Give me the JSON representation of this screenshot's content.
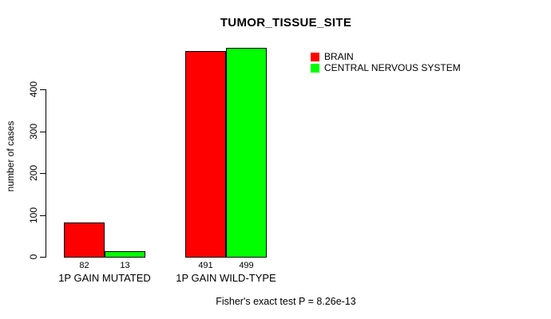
{
  "chart_data": {
    "type": "bar",
    "title": "TUMOR_TISSUE_SITE",
    "categories": [
      "1P GAIN MUTATED",
      "1P GAIN WILD-TYPE"
    ],
    "series": [
      {
        "name": "BRAIN",
        "color": "#ff0000",
        "values": [
          82,
          491
        ]
      },
      {
        "name": "CENTRAL NERVOUS SYSTEM",
        "color": "#00ff00",
        "values": [
          13,
          499
        ]
      }
    ],
    "ylabel": "number of cases",
    "xlabel": "",
    "yticks": [
      0,
      100,
      200,
      300,
      400
    ],
    "ylim": [
      0,
      499
    ],
    "grid": false,
    "bar_value_labels_shown": true,
    "legend_position": "top-right",
    "footnote": "Fisher's exact test P = 8.26e-13"
  }
}
